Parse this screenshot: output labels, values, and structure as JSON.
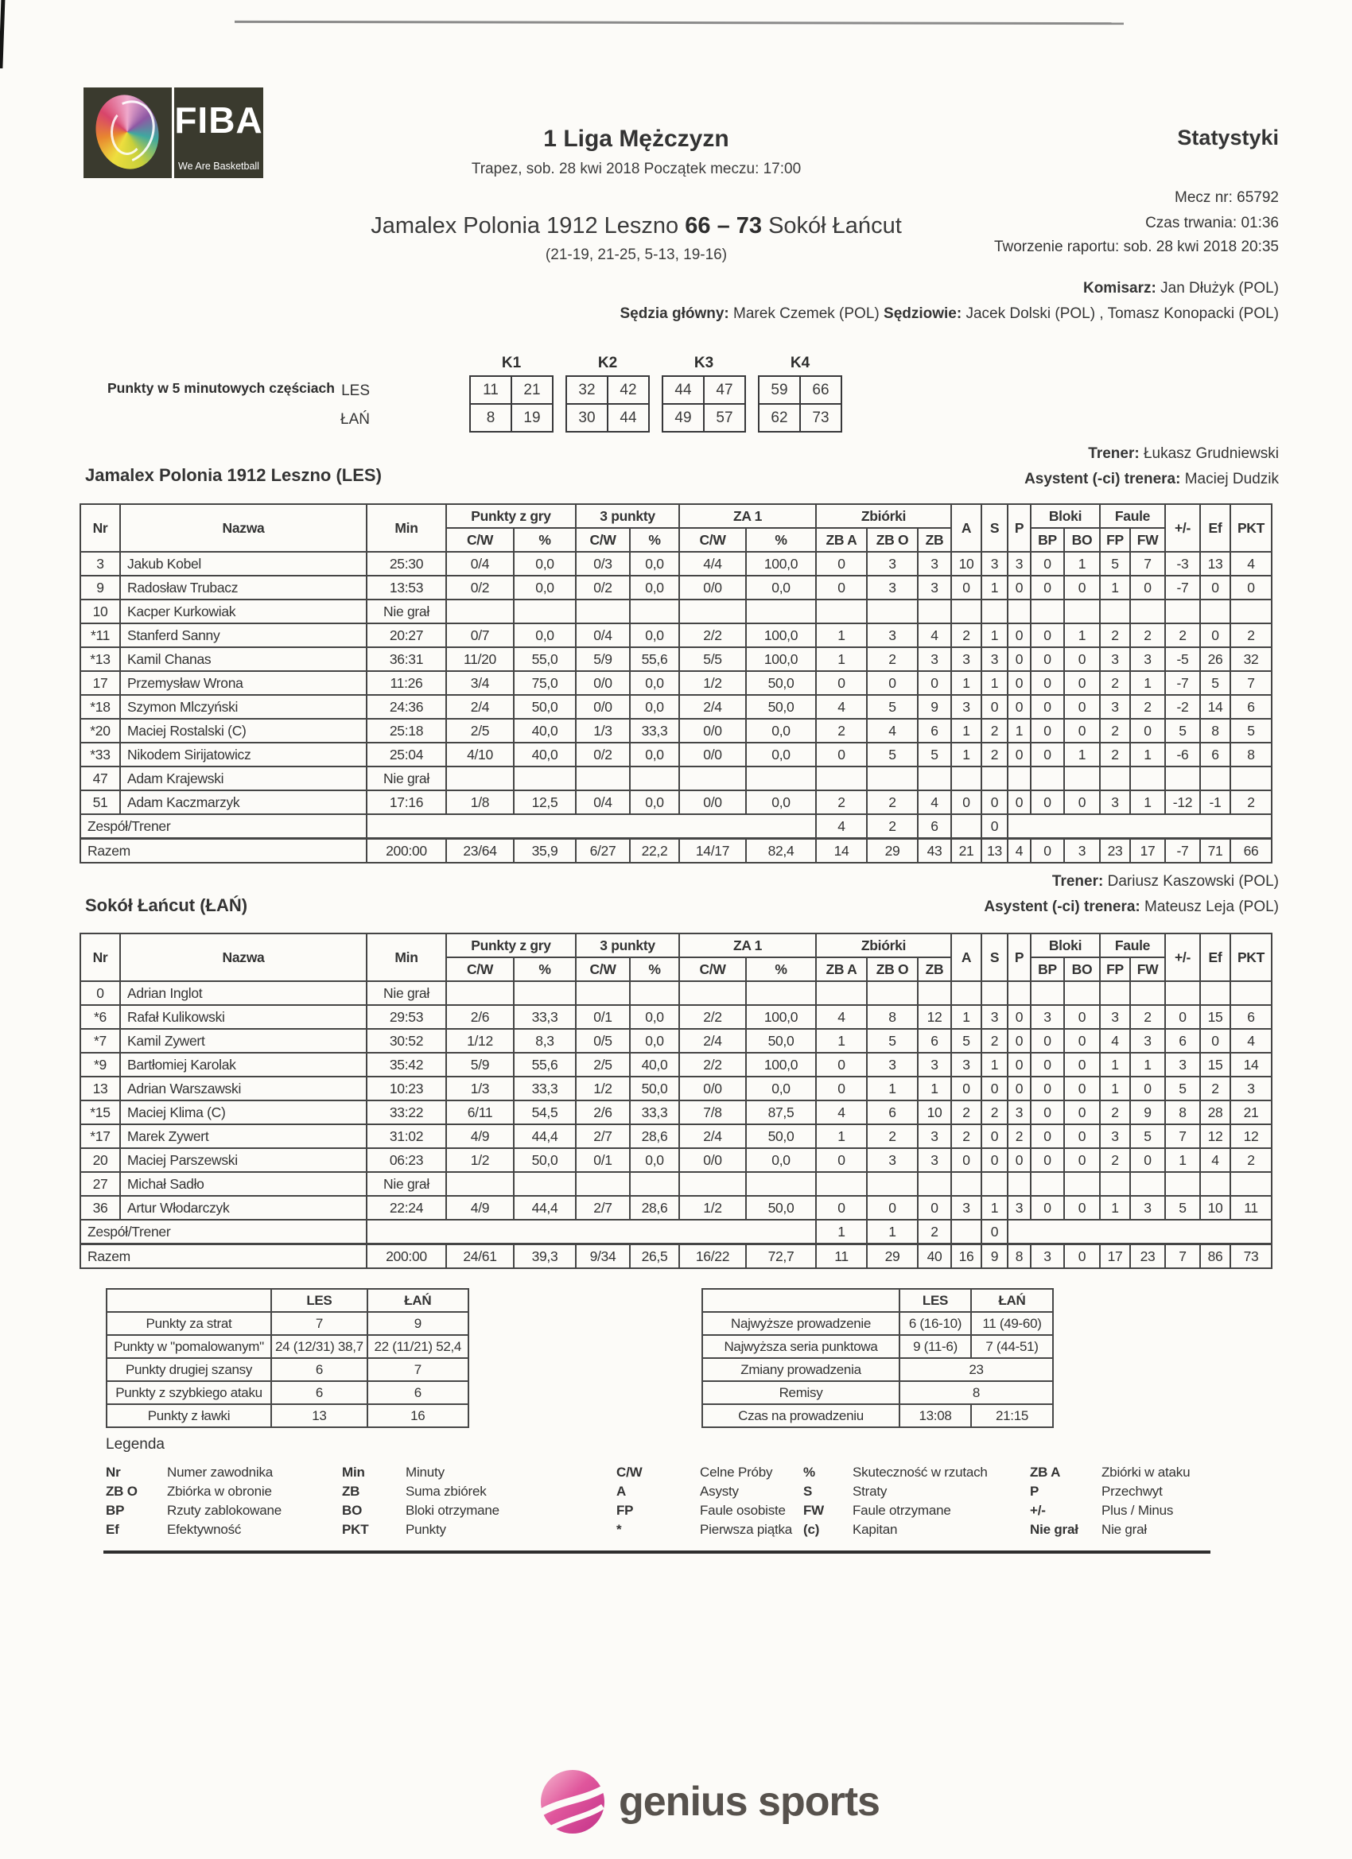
{
  "page": {
    "title_league": "1 Liga Mężczyzn",
    "subtitle": "Trapez, sob. 28 kwi 2018 Początek meczu: 17:00",
    "stats_label": "Statystyki",
    "match_no": "Mecz nr: 65792",
    "duration": "Czas trwania: 01:36",
    "report_created": "Tworzenie raportu: sob. 28 kwi 2018 20:35",
    "score_line": {
      "home": "Jamalex Polonia 1912 Leszno",
      "score": "66 – 73",
      "away": "Sokół Łańcut"
    },
    "partials": "(21-19, 21-25, 5-13, 19-16)",
    "commissioner_label": "Komisarz:",
    "commissioner": "Jan Dłużyk (POL)",
    "referee_main_label": "Sędzia główny:",
    "referee_main": "Marek Czemek (POL)",
    "referees_label": "Sędziowie:",
    "referees": "Jacek Dolski (POL) , Tomasz Konopacki (POL)"
  },
  "fiba_logo": {
    "text": "FIBA",
    "tagline": "We Are Basketball"
  },
  "quarters": {
    "section_label": "Punkty w 5 minutowych częściach",
    "row_labels": [
      "LES",
      "ŁAŃ"
    ],
    "labels": [
      "K1",
      "K2",
      "K3",
      "K4"
    ],
    "les": [
      [
        "11",
        "21"
      ],
      [
        "32",
        "42"
      ],
      [
        "44",
        "47"
      ],
      [
        "59",
        "66"
      ]
    ],
    "lan": [
      [
        "8",
        "19"
      ],
      [
        "30",
        "44"
      ],
      [
        "49",
        "57"
      ],
      [
        "62",
        "73"
      ]
    ]
  },
  "stat_headers": {
    "nr": "Nr",
    "name": "Nazwa",
    "min": "Min",
    "fg": "Punkty z gry",
    "tp": "3 punkty",
    "ft": "ZA 1",
    "reb": "Zbiórki",
    "cw": "C/W",
    "pct": "%",
    "zba": "ZB A",
    "zbo": "ZB O",
    "zb": "ZB",
    "a": "A",
    "s": "S",
    "p": "P",
    "blocks": "Bloki",
    "fouls": "Faule",
    "bp": "BP",
    "bo": "BO",
    "fp": "FP",
    "fw": "FW",
    "pm": "+/-",
    "ef": "Ef",
    "pkt": "PKT"
  },
  "team1": {
    "name": "Jamalex Polonia 1912 Leszno (LES)",
    "coach_label": "Trener:",
    "coach": "Łukasz Grudniewski",
    "assistant_label": "Asystent (-ci) trenera:",
    "assistant": "Maciej Dudzik",
    "rows": [
      {
        "type": "player",
        "cells": [
          "3",
          "Jakub Kobel",
          "25:30",
          "0/4",
          "0,0",
          "0/3",
          "0,0",
          "4/4",
          "100,0",
          "0",
          "3",
          "3",
          "10",
          "3",
          "3",
          "0",
          "1",
          "5",
          "7",
          "-3",
          "13",
          "4"
        ]
      },
      {
        "type": "player",
        "cells": [
          "9",
          "Radosław Trubacz",
          "13:53",
          "0/2",
          "0,0",
          "0/2",
          "0,0",
          "0/0",
          "0,0",
          "0",
          "3",
          "3",
          "0",
          "1",
          "0",
          "0",
          "0",
          "1",
          "0",
          "-7",
          "0",
          "0"
        ]
      },
      {
        "type": "player",
        "cells": [
          "10",
          "Kacper Kurkowiak",
          "Nie grał",
          "",
          "",
          "",
          "",
          "",
          "",
          "",
          "",
          "",
          "",
          "",
          "",
          "",
          "",
          "",
          "",
          "",
          "",
          ""
        ]
      },
      {
        "type": "player",
        "cells": [
          "*11",
          "Stanferd Sanny",
          "20:27",
          "0/7",
          "0,0",
          "0/4",
          "0,0",
          "2/2",
          "100,0",
          "1",
          "3",
          "4",
          "2",
          "1",
          "0",
          "0",
          "1",
          "2",
          "2",
          "2",
          "0",
          "2"
        ]
      },
      {
        "type": "player",
        "cells": [
          "*13",
          "Kamil Chanas",
          "36:31",
          "11/20",
          "55,0",
          "5/9",
          "55,6",
          "5/5",
          "100,0",
          "1",
          "2",
          "3",
          "3",
          "3",
          "0",
          "0",
          "0",
          "3",
          "3",
          "-5",
          "26",
          "32"
        ]
      },
      {
        "type": "player",
        "cells": [
          "17",
          "Przemysław Wrona",
          "11:26",
          "3/4",
          "75,0",
          "0/0",
          "0,0",
          "1/2",
          "50,0",
          "0",
          "0",
          "0",
          "1",
          "1",
          "0",
          "0",
          "0",
          "2",
          "1",
          "-7",
          "5",
          "7"
        ]
      },
      {
        "type": "player",
        "cells": [
          "*18",
          "Szymon Mlczyński",
          "24:36",
          "2/4",
          "50,0",
          "0/0",
          "0,0",
          "2/4",
          "50,0",
          "4",
          "5",
          "9",
          "3",
          "0",
          "0",
          "0",
          "0",
          "3",
          "2",
          "-2",
          "14",
          "6"
        ]
      },
      {
        "type": "player",
        "cells": [
          "*20",
          "Maciej Rostalski (C)",
          "25:18",
          "2/5",
          "40,0",
          "1/3",
          "33,3",
          "0/0",
          "0,0",
          "2",
          "4",
          "6",
          "1",
          "2",
          "1",
          "0",
          "0",
          "2",
          "0",
          "5",
          "8",
          "5"
        ]
      },
      {
        "type": "player",
        "cells": [
          "*33",
          "Nikodem Sirijatowicz",
          "25:04",
          "4/10",
          "40,0",
          "0/2",
          "0,0",
          "0/0",
          "0,0",
          "0",
          "5",
          "5",
          "1",
          "2",
          "0",
          "0",
          "1",
          "2",
          "1",
          "-6",
          "6",
          "8"
        ]
      },
      {
        "type": "player",
        "cells": [
          "47",
          "Adam Krajewski",
          "Nie grał",
          "",
          "",
          "",
          "",
          "",
          "",
          "",
          "",
          "",
          "",
          "",
          "",
          "",
          "",
          "",
          "",
          "",
          "",
          ""
        ]
      },
      {
        "type": "player",
        "cells": [
          "51",
          "Adam Kaczmarzyk",
          "17:16",
          "1/8",
          "12,5",
          "0/4",
          "0,0",
          "0/0",
          "0,0",
          "2",
          "2",
          "4",
          "0",
          "0",
          "0",
          "0",
          "0",
          "3",
          "1",
          "-12",
          "-1",
          "2"
        ]
      },
      {
        "type": "team",
        "label": "Zespół/Trener",
        "zba": "4",
        "zbo": "2",
        "zb": "6",
        "a": "",
        "s": "0"
      },
      {
        "type": "total",
        "cells": [
          "Razem",
          "200:00",
          "23/64",
          "35,9",
          "6/27",
          "22,2",
          "14/17",
          "82,4",
          "14",
          "29",
          "43",
          "21",
          "13",
          "4",
          "0",
          "3",
          "23",
          "17",
          "-7",
          "71",
          "66"
        ]
      }
    ]
  },
  "team2": {
    "name": "Sokół Łańcut (ŁAŃ)",
    "coach_label": "Trener:",
    "coach": "Dariusz Kaszowski (POL)",
    "assistant_label": "Asystent (-ci) trenera:",
    "assistant": "Mateusz Leja (POL)",
    "rows": [
      {
        "type": "player",
        "cells": [
          "0",
          "Adrian Inglot",
          "Nie grał",
          "",
          "",
          "",
          "",
          "",
          "",
          "",
          "",
          "",
          "",
          "",
          "",
          "",
          "",
          "",
          "",
          "",
          "",
          ""
        ]
      },
      {
        "type": "player",
        "cells": [
          "*6",
          "Rafał Kulikowski",
          "29:53",
          "2/6",
          "33,3",
          "0/1",
          "0,0",
          "2/2",
          "100,0",
          "4",
          "8",
          "12",
          "1",
          "3",
          "0",
          "3",
          "0",
          "3",
          "2",
          "0",
          "15",
          "6"
        ]
      },
      {
        "type": "player",
        "cells": [
          "*7",
          "Kamil Zywert",
          "30:52",
          "1/12",
          "8,3",
          "0/5",
          "0,0",
          "2/4",
          "50,0",
          "1",
          "5",
          "6",
          "5",
          "2",
          "0",
          "0",
          "0",
          "4",
          "3",
          "6",
          "0",
          "4"
        ]
      },
      {
        "type": "player",
        "cells": [
          "*9",
          "Bartłomiej Karolak",
          "35:42",
          "5/9",
          "55,6",
          "2/5",
          "40,0",
          "2/2",
          "100,0",
          "0",
          "3",
          "3",
          "3",
          "1",
          "0",
          "0",
          "0",
          "1",
          "1",
          "3",
          "15",
          "14"
        ]
      },
      {
        "type": "player",
        "cells": [
          "13",
          "Adrian Warszawski",
          "10:23",
          "1/3",
          "33,3",
          "1/2",
          "50,0",
          "0/0",
          "0,0",
          "0",
          "1",
          "1",
          "0",
          "0",
          "0",
          "0",
          "0",
          "1",
          "0",
          "5",
          "2",
          "3"
        ]
      },
      {
        "type": "player",
        "cells": [
          "*15",
          "Maciej Klima (C)",
          "33:22",
          "6/11",
          "54,5",
          "2/6",
          "33,3",
          "7/8",
          "87,5",
          "4",
          "6",
          "10",
          "2",
          "2",
          "3",
          "0",
          "0",
          "2",
          "9",
          "8",
          "28",
          "21"
        ]
      },
      {
        "type": "player",
        "cells": [
          "*17",
          "Marek Zywert",
          "31:02",
          "4/9",
          "44,4",
          "2/7",
          "28,6",
          "2/4",
          "50,0",
          "1",
          "2",
          "3",
          "2",
          "0",
          "2",
          "0",
          "0",
          "3",
          "5",
          "7",
          "12",
          "12"
        ]
      },
      {
        "type": "player",
        "cells": [
          "20",
          "Maciej Parszewski",
          "06:23",
          "1/2",
          "50,0",
          "0/1",
          "0,0",
          "0/0",
          "0,0",
          "0",
          "3",
          "3",
          "0",
          "0",
          "0",
          "0",
          "0",
          "2",
          "0",
          "1",
          "4",
          "2"
        ]
      },
      {
        "type": "player",
        "cells": [
          "27",
          "Michał Sadło",
          "Nie grał",
          "",
          "",
          "",
          "",
          "",
          "",
          "",
          "",
          "",
          "",
          "",
          "",
          "",
          "",
          "",
          "",
          "",
          "",
          ""
        ]
      },
      {
        "type": "player",
        "cells": [
          "36",
          "Artur Włodarczyk",
          "22:24",
          "4/9",
          "44,4",
          "2/7",
          "28,6",
          "1/2",
          "50,0",
          "0",
          "0",
          "0",
          "3",
          "1",
          "3",
          "0",
          "0",
          "1",
          "3",
          "5",
          "10",
          "11"
        ]
      },
      {
        "type": "team",
        "label": "Zespół/Trener",
        "zba": "1",
        "zbo": "1",
        "zb": "2",
        "a": "",
        "s": "0"
      },
      {
        "type": "total",
        "cells": [
          "Razem",
          "200:00",
          "24/61",
          "39,3",
          "9/34",
          "26,5",
          "16/22",
          "72,7",
          "11",
          "29",
          "40",
          "16",
          "9",
          "8",
          "3",
          "0",
          "17",
          "23",
          "7",
          "86",
          "73"
        ]
      }
    ]
  },
  "summary_left": {
    "cols": [
      "LES",
      "ŁAŃ"
    ],
    "rows": [
      {
        "label": "Punkty za strat",
        "les": "7",
        "lan": "9"
      },
      {
        "label": "Punkty w \"pomalowanym\"",
        "les": "24 (12/31) 38,7",
        "lan": "22 (11/21) 52,4"
      },
      {
        "label": "Punkty drugiej szansy",
        "les": "6",
        "lan": "7"
      },
      {
        "label": "Punkty z szybkiego ataku",
        "les": "6",
        "lan": "6"
      },
      {
        "label": "Punkty z ławki",
        "les": "13",
        "lan": "16"
      }
    ]
  },
  "summary_right": {
    "cols": [
      "LES",
      "ŁAŃ"
    ],
    "rows": [
      {
        "label": "Najwyższe prowadzenie",
        "les": "6 (16-10)",
        "lan": "11 (49-60)"
      },
      {
        "label": "Najwyższa seria punktowa",
        "les": "9 (11-6)",
        "lan": "7 (44-51)"
      },
      {
        "label": "Zmiany prowadzenia",
        "span": "23"
      },
      {
        "label": "Remisy",
        "span": "8"
      },
      {
        "label": "Czas na prowadzeniu",
        "les": "13:08",
        "lan": "21:15"
      }
    ]
  },
  "legend": {
    "title": "Legenda",
    "rows": [
      [
        [
          "Nr",
          "Numer zawodnika"
        ],
        [
          "Min",
          "Minuty"
        ],
        [
          "C/W",
          "Celne Próby"
        ],
        [
          "%",
          "Skuteczność w rzutach"
        ],
        [
          "ZB A",
          "Zbiórki w ataku"
        ]
      ],
      [
        [
          "ZB O",
          "Zbiórka w obronie"
        ],
        [
          "ZB",
          "Suma zbiórek"
        ],
        [
          "A",
          "Asysty"
        ],
        [
          "S",
          "Straty"
        ],
        [
          "P",
          "Przechwyt"
        ]
      ],
      [
        [
          "BP",
          "Rzuty zablokowane"
        ],
        [
          "BO",
          "Bloki otrzymane"
        ],
        [
          "FP",
          "Faule osobiste"
        ],
        [
          "FW",
          "Faule otrzymane"
        ],
        [
          "+/-",
          "Plus / Minus"
        ]
      ],
      [
        [
          "Ef",
          "Efektywność"
        ],
        [
          "PKT",
          "Punkty"
        ],
        [
          "*",
          "Pierwsza piątka"
        ],
        [
          "(c)",
          "Kapitan"
        ],
        [
          "Nie grał",
          "Nie grał"
        ]
      ]
    ]
  },
  "footer": {
    "brand": "genius sports"
  }
}
